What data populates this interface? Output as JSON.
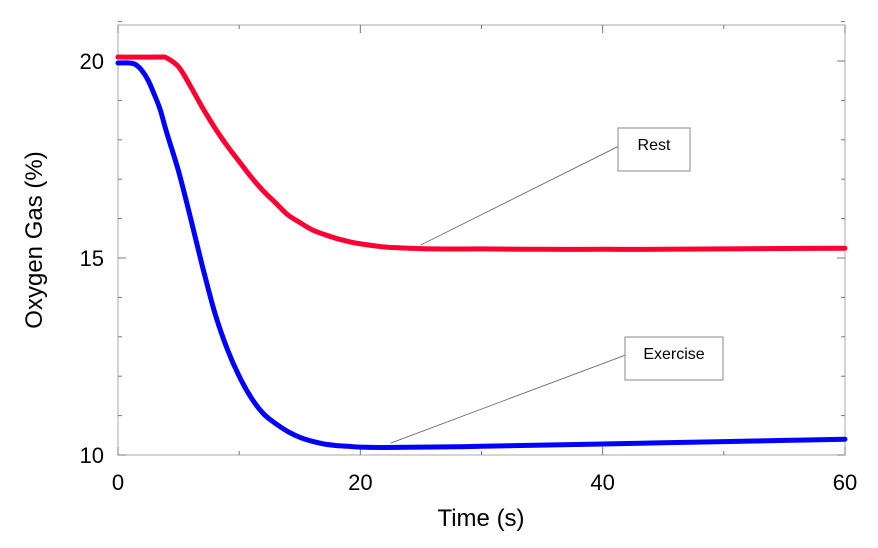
{
  "chart_data": {
    "type": "line",
    "xlabel": "Time (s)",
    "ylabel": "Oxygen Gas (%)",
    "xlim": [
      0,
      60
    ],
    "ylim": [
      10,
      21
    ],
    "xticks": [
      0,
      20,
      40,
      60
    ],
    "yticks": [
      10,
      15,
      20
    ],
    "grid": false,
    "series": [
      {
        "name": "Rest",
        "color": "#ff0033",
        "x": [
          0,
          1,
          2,
          3,
          3.5,
          4,
          5,
          6,
          7,
          8,
          9,
          10,
          11,
          12,
          13,
          14,
          15,
          16,
          17,
          18,
          19,
          20,
          22,
          24,
          26,
          30,
          35,
          40,
          45,
          50,
          55,
          60
        ],
        "y": [
          20.1,
          20.1,
          20.1,
          20.1,
          20.1,
          20.08,
          19.85,
          19.35,
          18.8,
          18.3,
          17.85,
          17.45,
          17.05,
          16.7,
          16.4,
          16.1,
          15.9,
          15.72,
          15.6,
          15.5,
          15.42,
          15.36,
          15.28,
          15.25,
          15.23,
          15.23,
          15.22,
          15.22,
          15.22,
          15.23,
          15.24,
          15.25
        ]
      },
      {
        "name": "Exercise",
        "color": "#0000ff",
        "x": [
          0,
          1,
          1.5,
          2,
          2.5,
          3,
          3.5,
          4,
          5,
          6,
          7,
          8,
          9,
          10,
          11,
          12,
          13,
          14,
          15,
          16,
          17,
          18,
          19,
          20,
          22,
          25,
          28,
          30,
          35,
          40,
          45,
          50,
          55,
          60
        ],
        "y": [
          19.95,
          19.95,
          19.9,
          19.75,
          19.5,
          19.15,
          18.75,
          18.2,
          17.2,
          16.0,
          14.75,
          13.6,
          12.7,
          12.0,
          11.45,
          11.05,
          10.8,
          10.6,
          10.45,
          10.35,
          10.28,
          10.24,
          10.22,
          10.2,
          10.19,
          10.2,
          10.21,
          10.22,
          10.25,
          10.28,
          10.31,
          10.34,
          10.37,
          10.4
        ]
      }
    ],
    "annotations": [
      {
        "text": "Rest",
        "target_x": 25,
        "target_y": 15.23
      },
      {
        "text": "Exercise",
        "target_x": 22.5,
        "target_y": 10.2
      }
    ]
  }
}
